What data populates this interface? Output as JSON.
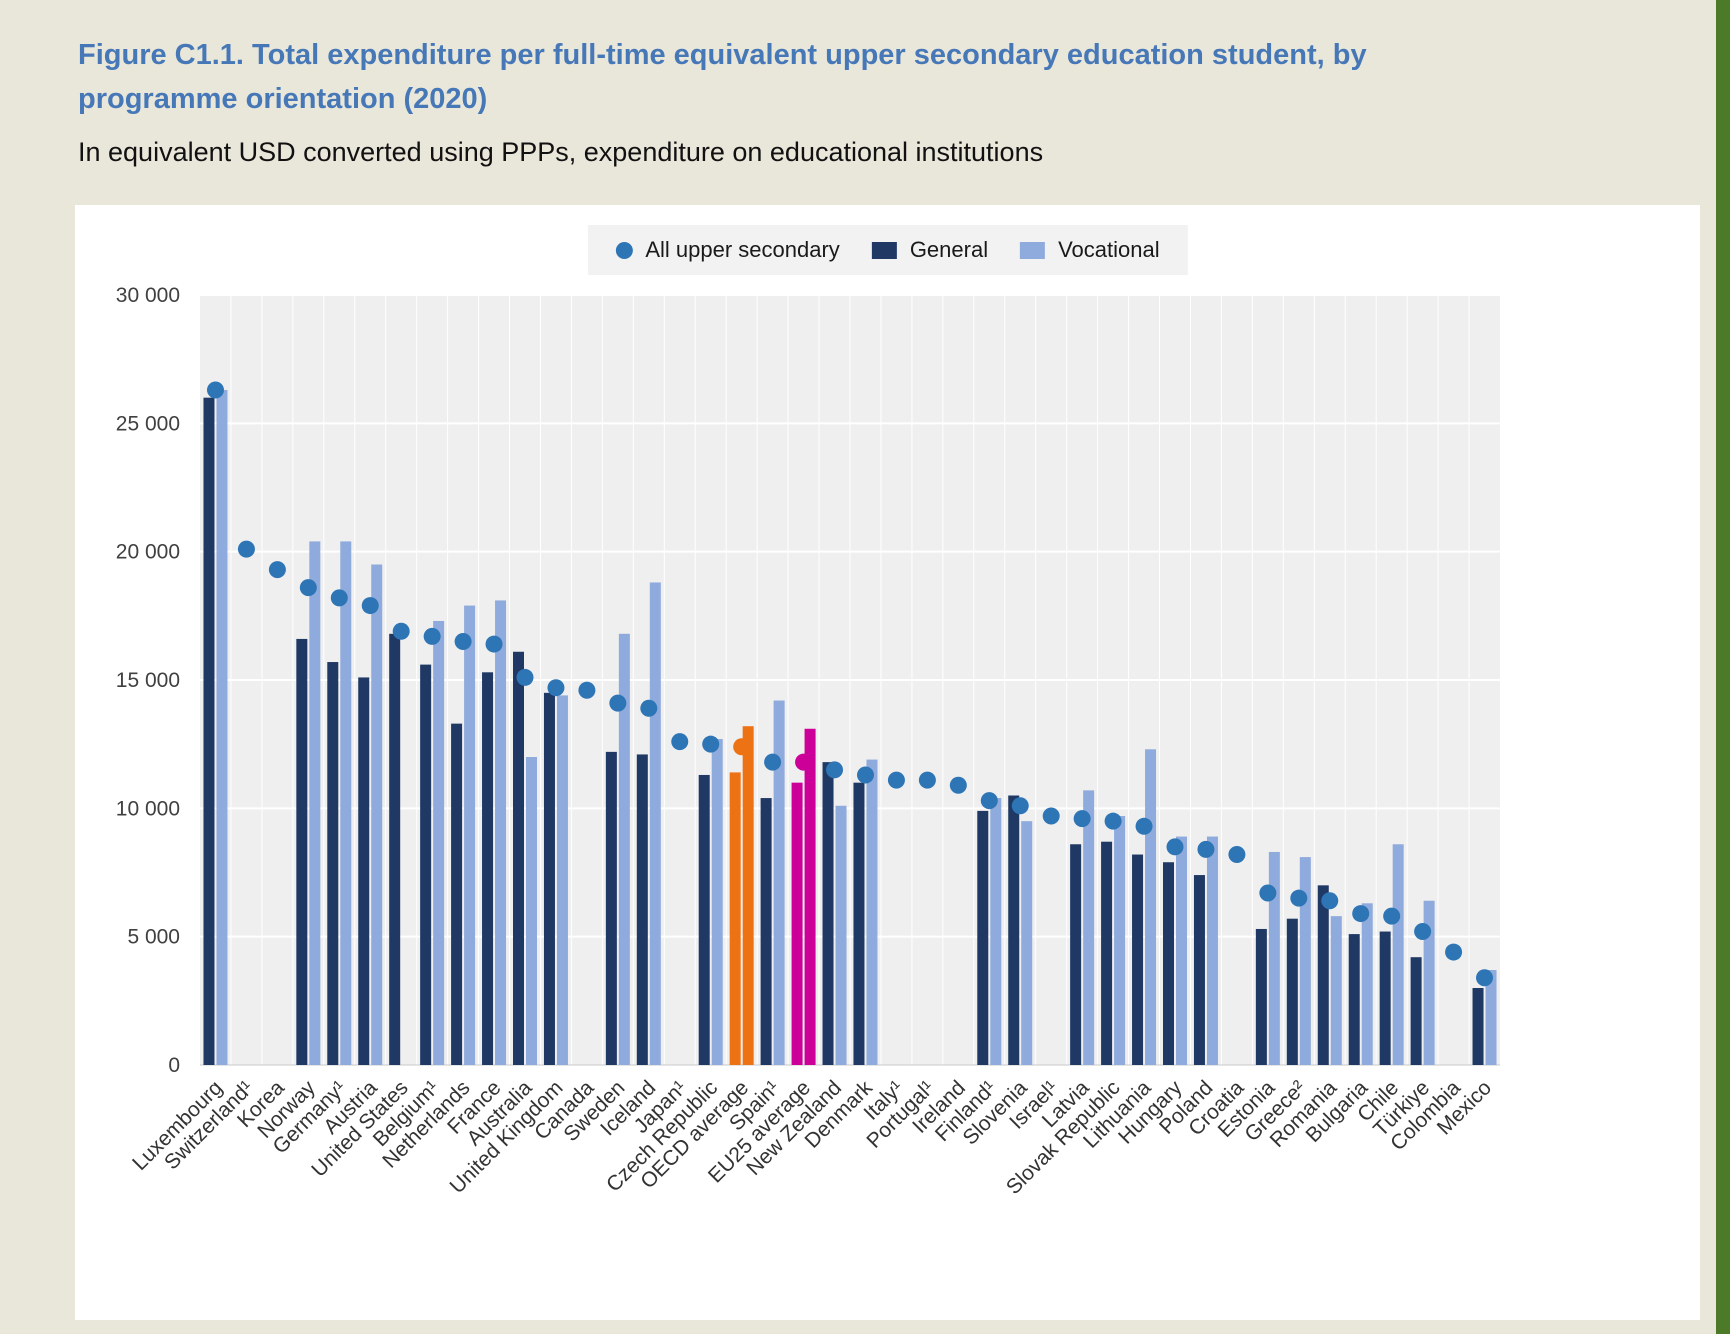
{
  "figure": {
    "title": "Figure C1.1. Total expenditure per full-time equivalent upper secondary education student, by programme orientation (2020)",
    "subtitle": "In equivalent USD converted using PPPs, expenditure on educational institutions"
  },
  "legend": {
    "items": [
      {
        "label": "All upper secondary",
        "marker": "dot",
        "color": "#2e75b6"
      },
      {
        "label": "General",
        "marker": "square",
        "color": "#1f3864"
      },
      {
        "label": "Vocational",
        "marker": "square",
        "color": "#8faadc"
      }
    ]
  },
  "colors": {
    "general": "#1f3864",
    "vocational": "#8faadc",
    "dot": "#2e75b6",
    "oecd_highlight": "#ed7214",
    "eu25_highlight": "#cc0099",
    "plot_bg": "#efefef",
    "gridline": "#ffffff",
    "axis_text": "#404040",
    "page_bg": "#e9e6da",
    "accent_green": "#4c7a28",
    "title_blue": "#4678b8"
  },
  "chart_data": {
    "type": "bar",
    "title": "Total expenditure per full-time equivalent upper secondary education student, by programme orientation (2020)",
    "subtitle": "In equivalent USD converted using PPPs, expenditure on educational institutions",
    "xlabel": "",
    "ylabel": "",
    "ylim": [
      0,
      30000
    ],
    "yticks": [
      0,
      5000,
      10000,
      15000,
      20000,
      25000,
      30000
    ],
    "ytick_labels": [
      "0",
      "5 000",
      "10 000",
      "15 000",
      "20 000",
      "25 000",
      "30 000"
    ],
    "grid": true,
    "legend_position": "top",
    "categories": [
      "Luxembourg",
      "Switzerland¹",
      "Korea",
      "Norway",
      "Germany¹",
      "Austria",
      "United States",
      "Belgium¹",
      "Netherlands",
      "France",
      "Australia",
      "United Kingdom",
      "Canada",
      "Sweden",
      "Iceland",
      "Japan¹",
      "Czech Republic",
      "OECD average",
      "Spain¹",
      "EU25 average",
      "New Zealand",
      "Denmark",
      "Italy¹",
      "Portugal¹",
      "Ireland",
      "Finland¹",
      "Slovenia",
      "Israel¹",
      "Latvia",
      "Slovak Republic",
      "Lithuania",
      "Hungary",
      "Poland",
      "Croatia",
      "Estonia",
      "Greece²",
      "Romania",
      "Bulgaria",
      "Chile",
      "Türkiye",
      "Colombia",
      "Mexico"
    ],
    "series": [
      {
        "name": "General",
        "type": "bar",
        "values": [
          26000,
          null,
          null,
          16600,
          15700,
          15100,
          16800,
          15600,
          13300,
          15300,
          16100,
          14500,
          null,
          12200,
          12100,
          null,
          11300,
          11400,
          10400,
          11000,
          11800,
          11000,
          null,
          null,
          null,
          9900,
          10500,
          null,
          8600,
          8700,
          8200,
          7900,
          7400,
          null,
          5300,
          5700,
          7000,
          5100,
          5200,
          4200,
          null,
          3000
        ]
      },
      {
        "name": "Vocational",
        "type": "bar",
        "values": [
          26300,
          null,
          null,
          20400,
          20400,
          19500,
          null,
          17300,
          17900,
          18100,
          12000,
          14400,
          null,
          16800,
          18800,
          null,
          12700,
          13200,
          14200,
          13100,
          10100,
          11900,
          null,
          null,
          null,
          10400,
          9500,
          null,
          10700,
          9700,
          12300,
          8900,
          8900,
          null,
          8300,
          8100,
          5800,
          6300,
          8600,
          6400,
          null,
          3700
        ]
      },
      {
        "name": "All upper secondary",
        "type": "scatter",
        "values": [
          26300,
          20100,
          19300,
          18600,
          18200,
          17900,
          16900,
          16700,
          16500,
          16400,
          15100,
          14700,
          14600,
          14100,
          13900,
          12600,
          12500,
          12400,
          11800,
          11800,
          11500,
          11300,
          11100,
          11100,
          10900,
          10300,
          10100,
          9700,
          9600,
          9500,
          9300,
          8500,
          8400,
          8200,
          6700,
          6500,
          6400,
          5900,
          5800,
          5200,
          4400,
          3400
        ]
      }
    ],
    "highlighted_categories": [
      {
        "category": "OECD average",
        "color": "#ed7214"
      },
      {
        "category": "EU25 average",
        "color": "#cc0099"
      }
    ]
  }
}
